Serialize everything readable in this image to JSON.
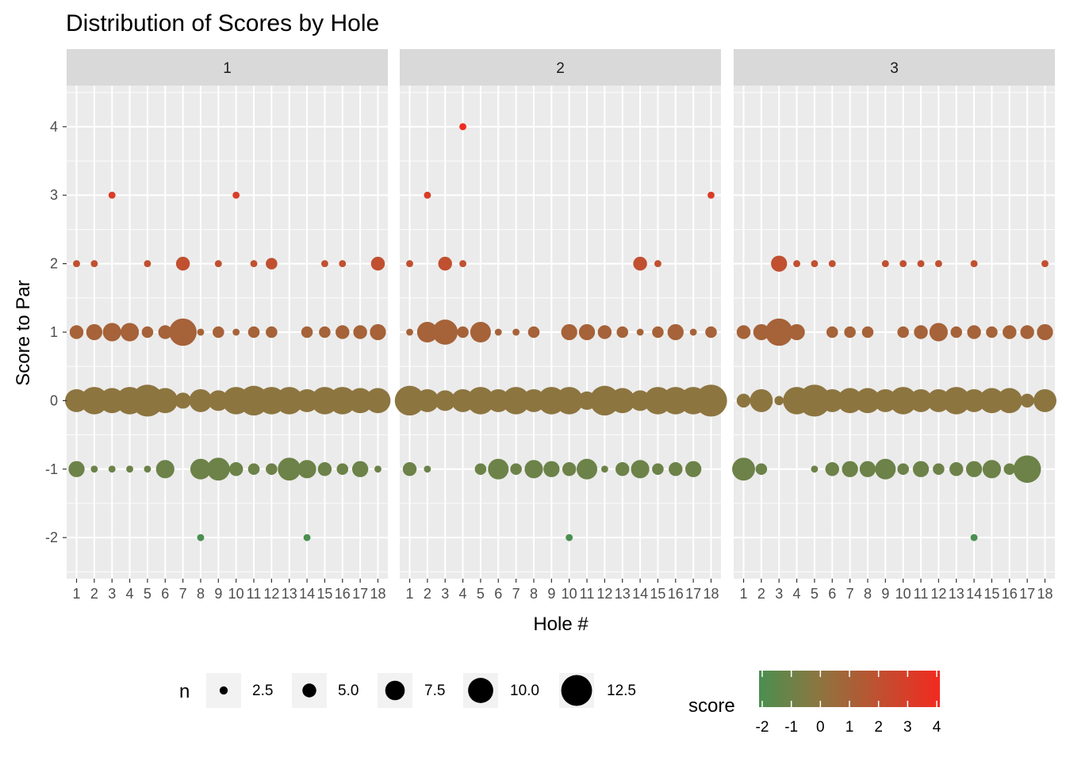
{
  "chart_data": {
    "type": "scatter",
    "title": "Distribution of Scores by Hole",
    "xlabel": "Hole #",
    "ylabel": "Score to Par",
    "x_categories": [
      "1",
      "2",
      "3",
      "4",
      "5",
      "6",
      "7",
      "8",
      "9",
      "10",
      "11",
      "12",
      "13",
      "14",
      "15",
      "16",
      "17",
      "18"
    ],
    "y_ticks": [
      4,
      3,
      2,
      1,
      0,
      -1,
      -2
    ],
    "ylim": [
      -2.6,
      4.6
    ],
    "grid": true,
    "facets": [
      {
        "label": "1",
        "points": [
          {
            "hole": 1,
            "score": 2,
            "n": 2
          },
          {
            "hole": 2,
            "score": 2,
            "n": 2
          },
          {
            "hole": 3,
            "score": 3,
            "n": 2
          },
          {
            "hole": 5,
            "score": 2,
            "n": 2
          },
          {
            "hole": 7,
            "score": 2,
            "n": 5
          },
          {
            "hole": 9,
            "score": 2,
            "n": 2
          },
          {
            "hole": 10,
            "score": 3,
            "n": 2
          },
          {
            "hole": 11,
            "score": 2,
            "n": 2
          },
          {
            "hole": 12,
            "score": 2,
            "n": 4
          },
          {
            "hole": 15,
            "score": 2,
            "n": 2
          },
          {
            "hole": 16,
            "score": 2,
            "n": 2
          },
          {
            "hole": 18,
            "score": 2,
            "n": 5
          },
          {
            "hole": 1,
            "score": 1,
            "n": 5
          },
          {
            "hole": 2,
            "score": 1,
            "n": 6
          },
          {
            "hole": 3,
            "score": 1,
            "n": 7
          },
          {
            "hole": 4,
            "score": 1,
            "n": 7
          },
          {
            "hole": 5,
            "score": 1,
            "n": 4
          },
          {
            "hole": 6,
            "score": 1,
            "n": 5
          },
          {
            "hole": 7,
            "score": 1,
            "n": 11
          },
          {
            "hole": 8,
            "score": 1,
            "n": 2
          },
          {
            "hole": 9,
            "score": 1,
            "n": 4
          },
          {
            "hole": 10,
            "score": 1,
            "n": 2
          },
          {
            "hole": 11,
            "score": 1,
            "n": 4
          },
          {
            "hole": 12,
            "score": 1,
            "n": 4
          },
          {
            "hole": 14,
            "score": 1,
            "n": 4
          },
          {
            "hole": 15,
            "score": 1,
            "n": 4
          },
          {
            "hole": 16,
            "score": 1,
            "n": 5
          },
          {
            "hole": 17,
            "score": 1,
            "n": 5
          },
          {
            "hole": 18,
            "score": 1,
            "n": 6
          },
          {
            "hole": 1,
            "score": 0,
            "n": 9
          },
          {
            "hole": 2,
            "score": 0,
            "n": 11
          },
          {
            "hole": 3,
            "score": 0,
            "n": 10
          },
          {
            "hole": 4,
            "score": 0,
            "n": 11
          },
          {
            "hole": 5,
            "score": 0,
            "n": 13
          },
          {
            "hole": 6,
            "score": 0,
            "n": 10
          },
          {
            "hole": 7,
            "score": 0,
            "n": 6
          },
          {
            "hole": 8,
            "score": 0,
            "n": 9
          },
          {
            "hole": 9,
            "score": 0,
            "n": 8
          },
          {
            "hole": 10,
            "score": 0,
            "n": 11
          },
          {
            "hole": 11,
            "score": 0,
            "n": 12
          },
          {
            "hole": 12,
            "score": 0,
            "n": 11
          },
          {
            "hole": 13,
            "score": 0,
            "n": 11
          },
          {
            "hole": 14,
            "score": 0,
            "n": 9
          },
          {
            "hole": 15,
            "score": 0,
            "n": 11
          },
          {
            "hole": 16,
            "score": 0,
            "n": 11
          },
          {
            "hole": 17,
            "score": 0,
            "n": 10
          },
          {
            "hole": 18,
            "score": 0,
            "n": 10
          },
          {
            "hole": 1,
            "score": -1,
            "n": 6
          },
          {
            "hole": 2,
            "score": -1,
            "n": 2
          },
          {
            "hole": 3,
            "score": -1,
            "n": 2
          },
          {
            "hole": 4,
            "score": -1,
            "n": 2
          },
          {
            "hole": 5,
            "score": -1,
            "n": 2
          },
          {
            "hole": 6,
            "score": -1,
            "n": 7
          },
          {
            "hole": 8,
            "score": -1,
            "n": 8
          },
          {
            "hole": 9,
            "score": -1,
            "n": 9
          },
          {
            "hole": 10,
            "score": -1,
            "n": 5
          },
          {
            "hole": 11,
            "score": -1,
            "n": 4
          },
          {
            "hole": 12,
            "score": -1,
            "n": 4
          },
          {
            "hole": 13,
            "score": -1,
            "n": 9
          },
          {
            "hole": 14,
            "score": -1,
            "n": 7
          },
          {
            "hole": 15,
            "score": -1,
            "n": 5
          },
          {
            "hole": 16,
            "score": -1,
            "n": 4
          },
          {
            "hole": 17,
            "score": -1,
            "n": 6
          },
          {
            "hole": 18,
            "score": -1,
            "n": 2
          },
          {
            "hole": 8,
            "score": -2,
            "n": 2
          },
          {
            "hole": 14,
            "score": -2,
            "n": 2
          }
        ]
      },
      {
        "label": "2",
        "points": [
          {
            "hole": 4,
            "score": 4,
            "n": 2
          },
          {
            "hole": 2,
            "score": 3,
            "n": 2
          },
          {
            "hole": 18,
            "score": 3,
            "n": 2
          },
          {
            "hole": 1,
            "score": 2,
            "n": 2
          },
          {
            "hole": 3,
            "score": 2,
            "n": 5
          },
          {
            "hole": 4,
            "score": 2,
            "n": 2
          },
          {
            "hole": 14,
            "score": 2,
            "n": 5
          },
          {
            "hole": 15,
            "score": 2,
            "n": 2
          },
          {
            "hole": 1,
            "score": 1,
            "n": 2
          },
          {
            "hole": 2,
            "score": 1,
            "n": 8
          },
          {
            "hole": 3,
            "score": 1,
            "n": 10
          },
          {
            "hole": 4,
            "score": 1,
            "n": 4
          },
          {
            "hole": 5,
            "score": 1,
            "n": 8
          },
          {
            "hole": 6,
            "score": 1,
            "n": 2
          },
          {
            "hole": 7,
            "score": 1,
            "n": 2
          },
          {
            "hole": 8,
            "score": 1,
            "n": 4
          },
          {
            "hole": 10,
            "score": 1,
            "n": 6
          },
          {
            "hole": 11,
            "score": 1,
            "n": 6
          },
          {
            "hole": 12,
            "score": 1,
            "n": 5
          },
          {
            "hole": 13,
            "score": 1,
            "n": 4
          },
          {
            "hole": 14,
            "score": 1,
            "n": 2
          },
          {
            "hole": 15,
            "score": 1,
            "n": 4
          },
          {
            "hole": 16,
            "score": 1,
            "n": 6
          },
          {
            "hole": 17,
            "score": 1,
            "n": 2
          },
          {
            "hole": 18,
            "score": 1,
            "n": 4
          },
          {
            "hole": 1,
            "score": 0,
            "n": 12
          },
          {
            "hole": 2,
            "score": 0,
            "n": 9
          },
          {
            "hole": 3,
            "score": 0,
            "n": 8
          },
          {
            "hole": 4,
            "score": 0,
            "n": 9
          },
          {
            "hole": 5,
            "score": 0,
            "n": 11
          },
          {
            "hole": 6,
            "score": 0,
            "n": 9
          },
          {
            "hole": 7,
            "score": 0,
            "n": 11
          },
          {
            "hole": 8,
            "score": 0,
            "n": 9
          },
          {
            "hole": 9,
            "score": 0,
            "n": 11
          },
          {
            "hole": 10,
            "score": 0,
            "n": 11
          },
          {
            "hole": 11,
            "score": 0,
            "n": 7
          },
          {
            "hole": 12,
            "score": 0,
            "n": 12
          },
          {
            "hole": 13,
            "score": 0,
            "n": 10
          },
          {
            "hole": 14,
            "score": 0,
            "n": 8
          },
          {
            "hole": 15,
            "score": 0,
            "n": 11
          },
          {
            "hole": 16,
            "score": 0,
            "n": 11
          },
          {
            "hole": 17,
            "score": 0,
            "n": 11
          },
          {
            "hole": 18,
            "score": 0,
            "n": 13
          },
          {
            "hole": 1,
            "score": -1,
            "n": 5
          },
          {
            "hole": 2,
            "score": -1,
            "n": 2
          },
          {
            "hole": 5,
            "score": -1,
            "n": 4
          },
          {
            "hole": 6,
            "score": -1,
            "n": 8
          },
          {
            "hole": 7,
            "score": -1,
            "n": 4
          },
          {
            "hole": 8,
            "score": -1,
            "n": 7
          },
          {
            "hole": 9,
            "score": -1,
            "n": 6
          },
          {
            "hole": 10,
            "score": -1,
            "n": 5
          },
          {
            "hole": 11,
            "score": -1,
            "n": 8
          },
          {
            "hole": 12,
            "score": -1,
            "n": 2
          },
          {
            "hole": 13,
            "score": -1,
            "n": 5
          },
          {
            "hole": 14,
            "score": -1,
            "n": 7
          },
          {
            "hole": 15,
            "score": -1,
            "n": 4
          },
          {
            "hole": 16,
            "score": -1,
            "n": 5
          },
          {
            "hole": 17,
            "score": -1,
            "n": 6
          },
          {
            "hole": 10,
            "score": -2,
            "n": 2
          }
        ]
      },
      {
        "label": "3",
        "points": [
          {
            "hole": 3,
            "score": 2,
            "n": 6
          },
          {
            "hole": 4,
            "score": 2,
            "n": 2
          },
          {
            "hole": 5,
            "score": 2,
            "n": 2
          },
          {
            "hole": 6,
            "score": 2,
            "n": 2
          },
          {
            "hole": 9,
            "score": 2,
            "n": 2
          },
          {
            "hole": 10,
            "score": 2,
            "n": 2
          },
          {
            "hole": 11,
            "score": 2,
            "n": 2
          },
          {
            "hole": 12,
            "score": 2,
            "n": 2
          },
          {
            "hole": 14,
            "score": 2,
            "n": 2
          },
          {
            "hole": 18,
            "score": 2,
            "n": 2
          },
          {
            "hole": 1,
            "score": 1,
            "n": 5
          },
          {
            "hole": 2,
            "score": 1,
            "n": 6
          },
          {
            "hole": 3,
            "score": 1,
            "n": 11
          },
          {
            "hole": 4,
            "score": 1,
            "n": 6
          },
          {
            "hole": 6,
            "score": 1,
            "n": 4
          },
          {
            "hole": 7,
            "score": 1,
            "n": 4
          },
          {
            "hole": 8,
            "score": 1,
            "n": 4
          },
          {
            "hole": 10,
            "score": 1,
            "n": 4
          },
          {
            "hole": 11,
            "score": 1,
            "n": 5
          },
          {
            "hole": 12,
            "score": 1,
            "n": 7
          },
          {
            "hole": 13,
            "score": 1,
            "n": 4
          },
          {
            "hole": 14,
            "score": 1,
            "n": 5
          },
          {
            "hole": 15,
            "score": 1,
            "n": 4
          },
          {
            "hole": 16,
            "score": 1,
            "n": 5
          },
          {
            "hole": 17,
            "score": 1,
            "n": 5
          },
          {
            "hole": 18,
            "score": 1,
            "n": 6
          },
          {
            "hole": 1,
            "score": 0,
            "n": 5
          },
          {
            "hole": 2,
            "score": 0,
            "n": 9
          },
          {
            "hole": 3,
            "score": 0,
            "n": 3
          },
          {
            "hole": 4,
            "score": 0,
            "n": 11
          },
          {
            "hole": 5,
            "score": 0,
            "n": 13
          },
          {
            "hole": 6,
            "score": 0,
            "n": 9
          },
          {
            "hole": 7,
            "score": 0,
            "n": 10
          },
          {
            "hole": 8,
            "score": 0,
            "n": 10
          },
          {
            "hole": 9,
            "score": 0,
            "n": 9
          },
          {
            "hole": 10,
            "score": 0,
            "n": 11
          },
          {
            "hole": 11,
            "score": 0,
            "n": 9
          },
          {
            "hole": 12,
            "score": 0,
            "n": 9
          },
          {
            "hole": 13,
            "score": 0,
            "n": 11
          },
          {
            "hole": 14,
            "score": 0,
            "n": 9
          },
          {
            "hole": 15,
            "score": 0,
            "n": 10
          },
          {
            "hole": 16,
            "score": 0,
            "n": 10
          },
          {
            "hole": 17,
            "score": 0,
            "n": 5
          },
          {
            "hole": 18,
            "score": 0,
            "n": 9
          },
          {
            "hole": 1,
            "score": -1,
            "n": 9
          },
          {
            "hole": 2,
            "score": -1,
            "n": 4
          },
          {
            "hole": 5,
            "score": -1,
            "n": 2
          },
          {
            "hole": 6,
            "score": -1,
            "n": 5
          },
          {
            "hole": 7,
            "score": -1,
            "n": 6
          },
          {
            "hole": 8,
            "score": -1,
            "n": 6
          },
          {
            "hole": 9,
            "score": -1,
            "n": 8
          },
          {
            "hole": 10,
            "score": -1,
            "n": 4
          },
          {
            "hole": 11,
            "score": -1,
            "n": 6
          },
          {
            "hole": 12,
            "score": -1,
            "n": 4
          },
          {
            "hole": 13,
            "score": -1,
            "n": 5
          },
          {
            "hole": 14,
            "score": -1,
            "n": 6
          },
          {
            "hole": 15,
            "score": -1,
            "n": 7
          },
          {
            "hole": 16,
            "score": -1,
            "n": 4
          },
          {
            "hole": 17,
            "score": -1,
            "n": 11
          },
          {
            "hole": 14,
            "score": -2,
            "n": 2
          }
        ]
      }
    ],
    "legend_size": {
      "title": "n",
      "items": [
        {
          "value": 2.5,
          "label": "2.5"
        },
        {
          "value": 5.0,
          "label": "5.0"
        },
        {
          "value": 7.5,
          "label": "7.5"
        },
        {
          "value": 10.0,
          "label": "10.0"
        },
        {
          "value": 12.5,
          "label": "12.5"
        }
      ]
    },
    "legend_color": {
      "title": "score",
      "range": [
        -2,
        4
      ],
      "ticks": [
        "-2",
        "-1",
        "0",
        "1",
        "2",
        "3",
        "4"
      ],
      "low_color": "#4a8f50",
      "mid_color": "#8d7540",
      "high_color": "#f22a20"
    },
    "colors": {
      "panel_bg": "#ebebeb",
      "strip_bg": "#d9d9d9",
      "grid": "#ffffff"
    }
  }
}
